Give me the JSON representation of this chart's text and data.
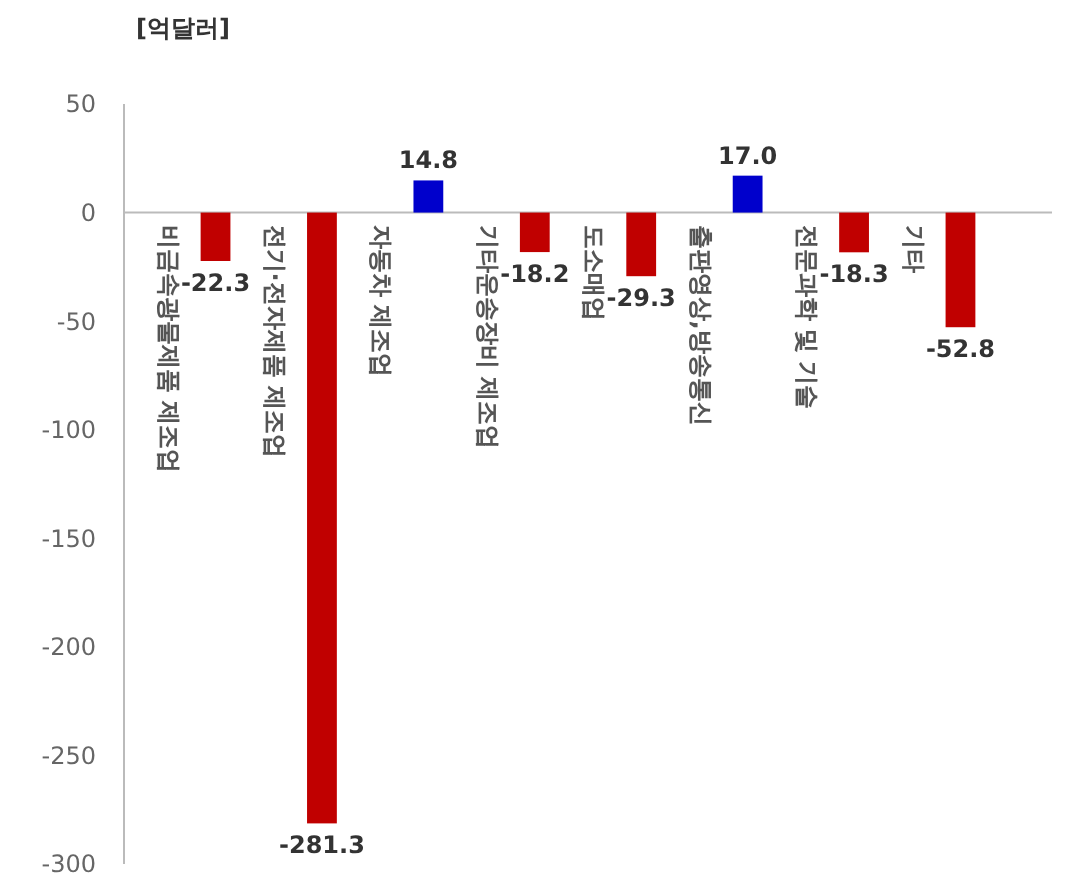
{
  "chart_data": {
    "type": "bar",
    "ylabel": "[억달러]",
    "categories": [
      "비금속광물제품 제조업",
      "전기·전자제품 제조업",
      "자동차 제조업",
      "기타운송장비 제조업",
      "도소매업",
      "출판영상,방송통신",
      "전문과학 및 기술",
      "기타"
    ],
    "values": [
      -22.3,
      -281.3,
      14.8,
      -18.2,
      -29.3,
      17.0,
      -18.3,
      -52.8
    ],
    "colors": [
      "#c00000",
      "#c00000",
      "#0000cc",
      "#c00000",
      "#c00000",
      "#0000cc",
      "#c00000",
      "#c00000"
    ],
    "ylim": [
      -300,
      50
    ],
    "yticks": [
      -300,
      -250,
      -200,
      -150,
      -100,
      -50,
      0,
      50
    ],
    "value_labels": [
      "-22.3",
      "-281.3",
      "14.8",
      "-18.2",
      "-29.3",
      "17.0",
      "-18.3",
      "-52.8"
    ]
  }
}
